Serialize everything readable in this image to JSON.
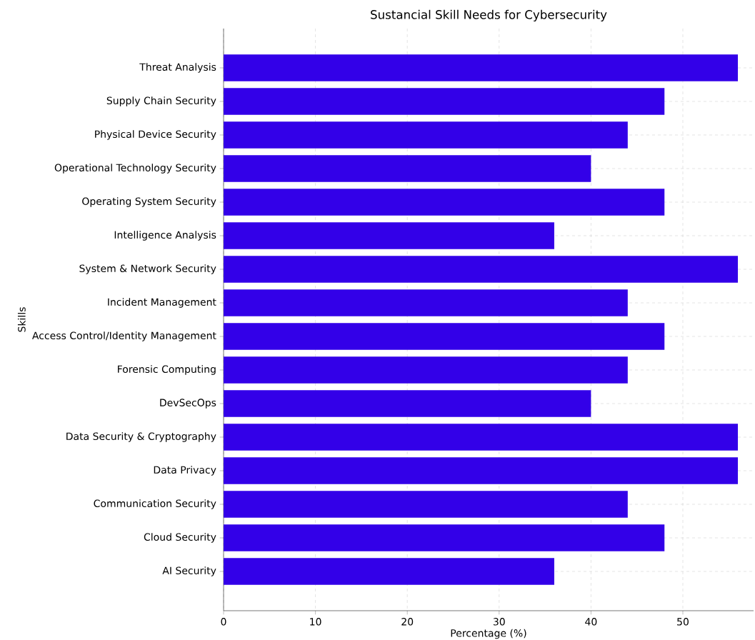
{
  "chart_data": {
    "type": "bar",
    "orientation": "horizontal",
    "title": "Sustancial Skill Needs for Cybersecurity",
    "xlabel": "Percentage (%)",
    "ylabel": "Skills",
    "categories": [
      "Threat Analysis",
      "Supply Chain Security",
      "Physical Device Security",
      "Operational Technology Security",
      "Operating System Security",
      "Intelligence Analysis",
      "System & Network Security",
      "Incident Management",
      "Access Control/Identity Management",
      "Forensic Computing",
      "DevSecOps",
      "Data Security & Cryptography",
      "Data Privacy",
      "Communication Security",
      "Cloud Security",
      "AI Security"
    ],
    "values": [
      56,
      48,
      44,
      40,
      48,
      36,
      56,
      44,
      48,
      44,
      40,
      56,
      56,
      44,
      48,
      36
    ],
    "color": "#3300e8",
    "xlim": [
      0,
      57.7
    ],
    "xticks": [
      0,
      10,
      20,
      30,
      40,
      50
    ],
    "grid": true
  }
}
